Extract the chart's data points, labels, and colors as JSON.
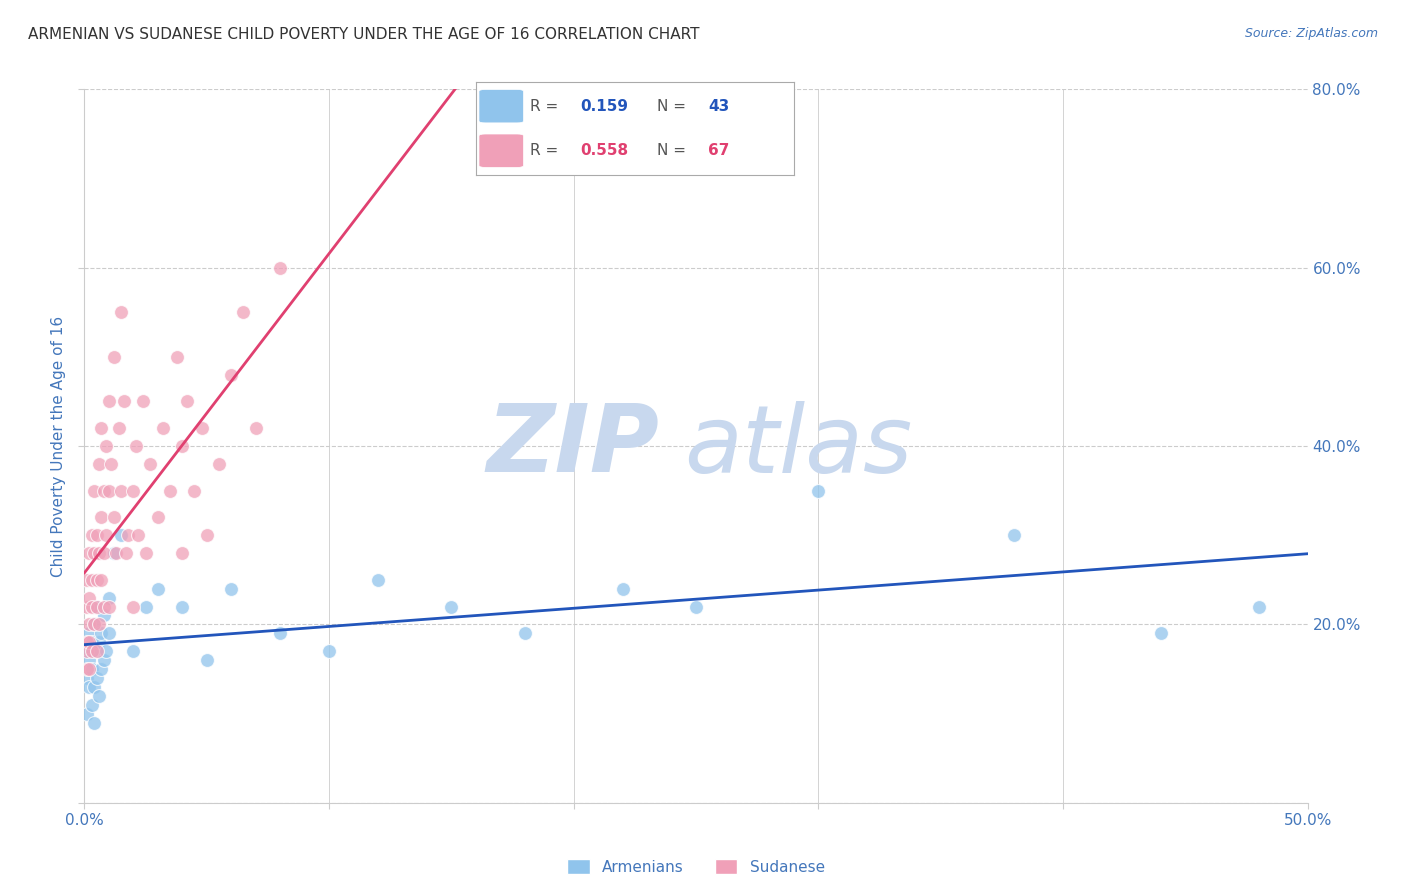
{
  "title": "ARMENIAN VS SUDANESE CHILD POVERTY UNDER THE AGE OF 16 CORRELATION CHART",
  "source": "Source: ZipAtlas.com",
  "ylabel": "Child Poverty Under the Age of 16",
  "xlim": [
    0.0,
    0.5
  ],
  "ylim": [
    0.0,
    0.8
  ],
  "xtick_positions": [
    0.0,
    0.1,
    0.2,
    0.3,
    0.4,
    0.5
  ],
  "ytick_positions": [
    0.0,
    0.2,
    0.4,
    0.6,
    0.8
  ],
  "ytick_labels_right": [
    "",
    "20.0%",
    "40.0%",
    "60.0%",
    "80.0%"
  ],
  "xtick_labels": [
    "0.0%",
    "",
    "",
    "",
    "",
    "50.0%"
  ],
  "background_color": "#ffffff",
  "watermark_zip": "ZIP",
  "watermark_atlas": "atlas",
  "watermark_color": "#c8d8ee",
  "legend_r_armenian": "0.159",
  "legend_n_armenian": "43",
  "legend_r_sudanese": "0.558",
  "legend_n_sudanese": "67",
  "armenian_color": "#90C4EC",
  "sudanese_color": "#F0A0B8",
  "armenian_trend_color": "#2255BB",
  "sudanese_trend_color": "#E04070",
  "grid_color": "#cccccc",
  "grid_linestyle": "--",
  "title_color": "#333333",
  "axis_label_color": "#4477BB",
  "armenian_scatter_x": [
    0.001,
    0.001,
    0.001,
    0.002,
    0.002,
    0.002,
    0.003,
    0.003,
    0.003,
    0.004,
    0.004,
    0.004,
    0.005,
    0.005,
    0.005,
    0.006,
    0.006,
    0.007,
    0.007,
    0.008,
    0.008,
    0.009,
    0.01,
    0.01,
    0.012,
    0.015,
    0.02,
    0.025,
    0.03,
    0.04,
    0.05,
    0.06,
    0.08,
    0.1,
    0.12,
    0.15,
    0.18,
    0.22,
    0.25,
    0.3,
    0.38,
    0.44,
    0.48
  ],
  "armenian_scatter_y": [
    0.17,
    0.14,
    0.1,
    0.16,
    0.19,
    0.13,
    0.15,
    0.18,
    0.11,
    0.2,
    0.13,
    0.09,
    0.17,
    0.14,
    0.22,
    0.18,
    0.12,
    0.19,
    0.15,
    0.16,
    0.21,
    0.17,
    0.19,
    0.23,
    0.28,
    0.3,
    0.17,
    0.22,
    0.24,
    0.22,
    0.16,
    0.24,
    0.19,
    0.17,
    0.25,
    0.22,
    0.19,
    0.24,
    0.22,
    0.35,
    0.3,
    0.19,
    0.22
  ],
  "sudanese_scatter_x": [
    0.001,
    0.001,
    0.001,
    0.001,
    0.001,
    0.002,
    0.002,
    0.002,
    0.002,
    0.002,
    0.003,
    0.003,
    0.003,
    0.003,
    0.004,
    0.004,
    0.004,
    0.005,
    0.005,
    0.005,
    0.005,
    0.006,
    0.006,
    0.006,
    0.007,
    0.007,
    0.007,
    0.008,
    0.008,
    0.008,
    0.009,
    0.009,
    0.01,
    0.01,
    0.01,
    0.011,
    0.012,
    0.012,
    0.013,
    0.014,
    0.015,
    0.015,
    0.016,
    0.017,
    0.018,
    0.02,
    0.02,
    0.021,
    0.022,
    0.024,
    0.025,
    0.027,
    0.03,
    0.032,
    0.035,
    0.038,
    0.04,
    0.04,
    0.042,
    0.045,
    0.048,
    0.05,
    0.055,
    0.06,
    0.065,
    0.07,
    0.08
  ],
  "sudanese_scatter_y": [
    0.18,
    0.22,
    0.17,
    0.25,
    0.15,
    0.2,
    0.28,
    0.15,
    0.23,
    0.18,
    0.3,
    0.22,
    0.17,
    0.25,
    0.35,
    0.2,
    0.28,
    0.22,
    0.17,
    0.3,
    0.25,
    0.38,
    0.28,
    0.2,
    0.32,
    0.25,
    0.42,
    0.35,
    0.22,
    0.28,
    0.4,
    0.3,
    0.45,
    0.22,
    0.35,
    0.38,
    0.5,
    0.32,
    0.28,
    0.42,
    0.55,
    0.35,
    0.45,
    0.28,
    0.3,
    0.22,
    0.35,
    0.4,
    0.3,
    0.45,
    0.28,
    0.38,
    0.32,
    0.42,
    0.35,
    0.5,
    0.4,
    0.28,
    0.45,
    0.35,
    0.42,
    0.3,
    0.38,
    0.48,
    0.55,
    0.42,
    0.6
  ],
  "sudanese_trend_x_end": 0.22,
  "marker_size": 100,
  "marker_alpha": 0.75
}
